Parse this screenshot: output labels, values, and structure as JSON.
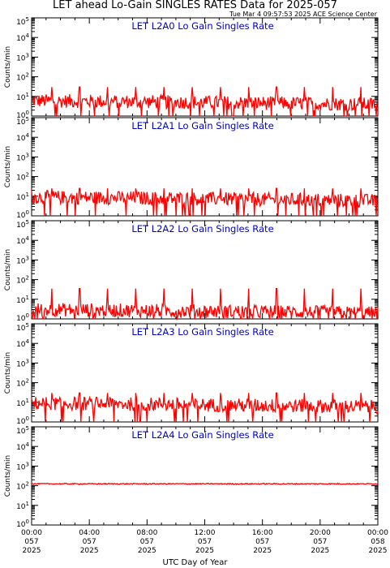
{
  "figure": {
    "title": "LET ahead Lo-Gain SINGLES RATES Data for 2025-057",
    "timestamp": "Tue Mar  4 09:57:53 2025 ACE Science Center",
    "xlabel": "UTC Day of Year"
  },
  "colors": {
    "series": "#ff0000",
    "panel_title": "#0000cc",
    "axes": "#000000"
  },
  "chart_data": [
    {
      "type": "line",
      "title": "LET L2A0 Lo Gain Singles Rate",
      "ylabel": "Counts/min",
      "yscale": "log",
      "ylim": [
        1,
        100000
      ],
      "ytick_labels": [
        {
          "base": "10",
          "exp": "0"
        },
        {
          "base": "10",
          "exp": "1"
        },
        {
          "base": "10",
          "exp": "2"
        },
        {
          "base": "10",
          "exp": "3"
        },
        {
          "base": "10",
          "exp": "4"
        },
        {
          "base": "10",
          "exp": "5"
        }
      ],
      "series": [
        {
          "base_level": 6,
          "spike_level": 30
        }
      ]
    },
    {
      "type": "line",
      "title": "LET L2A1 Lo Gain Singles Rate",
      "ylabel": "Counts/min",
      "yscale": "log",
      "ylim": [
        1,
        100000
      ],
      "ytick_labels": [
        {
          "base": "10",
          "exp": "0"
        },
        {
          "base": "10",
          "exp": "1"
        },
        {
          "base": "10",
          "exp": "2"
        },
        {
          "base": "10",
          "exp": "3"
        },
        {
          "base": "10",
          "exp": "4"
        },
        {
          "base": "10",
          "exp": "5"
        }
      ],
      "series": [
        {
          "base_level": 9,
          "spike_level": 25
        }
      ]
    },
    {
      "type": "line",
      "title": "LET L2A2 Lo Gain Singles Rate",
      "ylabel": "Counts/min",
      "yscale": "log",
      "ylim": [
        1,
        100000
      ],
      "ytick_labels": [
        {
          "base": "10",
          "exp": "0"
        },
        {
          "base": "10",
          "exp": "1"
        },
        {
          "base": "10",
          "exp": "2"
        },
        {
          "base": "10",
          "exp": "3"
        },
        {
          "base": "10",
          "exp": "4"
        },
        {
          "base": "10",
          "exp": "5"
        }
      ],
      "series": [
        {
          "base_level": 3,
          "spike_level": 35
        }
      ]
    },
    {
      "type": "line",
      "title": "LET L2A3 Lo Gain Singles Rate",
      "ylabel": "Counts/min",
      "yscale": "log",
      "ylim": [
        1,
        100000
      ],
      "ytick_labels": [
        {
          "base": "10",
          "exp": "0"
        },
        {
          "base": "10",
          "exp": "1"
        },
        {
          "base": "10",
          "exp": "2"
        },
        {
          "base": "10",
          "exp": "3"
        },
        {
          "base": "10",
          "exp": "4"
        },
        {
          "base": "10",
          "exp": "5"
        }
      ],
      "series": [
        {
          "base_level": 9,
          "spike_level": 30
        }
      ]
    },
    {
      "type": "line",
      "title": "LET L2A4 Lo Gain Singles Rate",
      "ylabel": "Counts/min",
      "yscale": "log",
      "ylim": [
        1,
        100000
      ],
      "ytick_labels": [
        {
          "base": "10",
          "exp": "0"
        },
        {
          "base": "10",
          "exp": "1"
        },
        {
          "base": "10",
          "exp": "2"
        },
        {
          "base": "10",
          "exp": "3"
        },
        {
          "base": "10",
          "exp": "4"
        },
        {
          "base": "10",
          "exp": "5"
        }
      ],
      "series": [
        {
          "base_level": 125,
          "spike_level": 0
        }
      ]
    }
  ],
  "x_axis": {
    "range_hours": [
      0,
      24
    ],
    "ticks": [
      {
        "hours": 0,
        "time": "00:00",
        "doy": "057",
        "year": "2025"
      },
      {
        "hours": 4,
        "time": "04:00",
        "doy": "057",
        "year": "2025"
      },
      {
        "hours": 8,
        "time": "08:00",
        "doy": "057",
        "year": "2025"
      },
      {
        "hours": 12,
        "time": "12:00",
        "doy": "057",
        "year": "2025"
      },
      {
        "hours": 16,
        "time": "16:00",
        "doy": "057",
        "year": "2025"
      },
      {
        "hours": 20,
        "time": "20:00",
        "doy": "057",
        "year": "2025"
      },
      {
        "hours": 24,
        "time": "00:00",
        "doy": "058",
        "year": "2025"
      }
    ]
  }
}
